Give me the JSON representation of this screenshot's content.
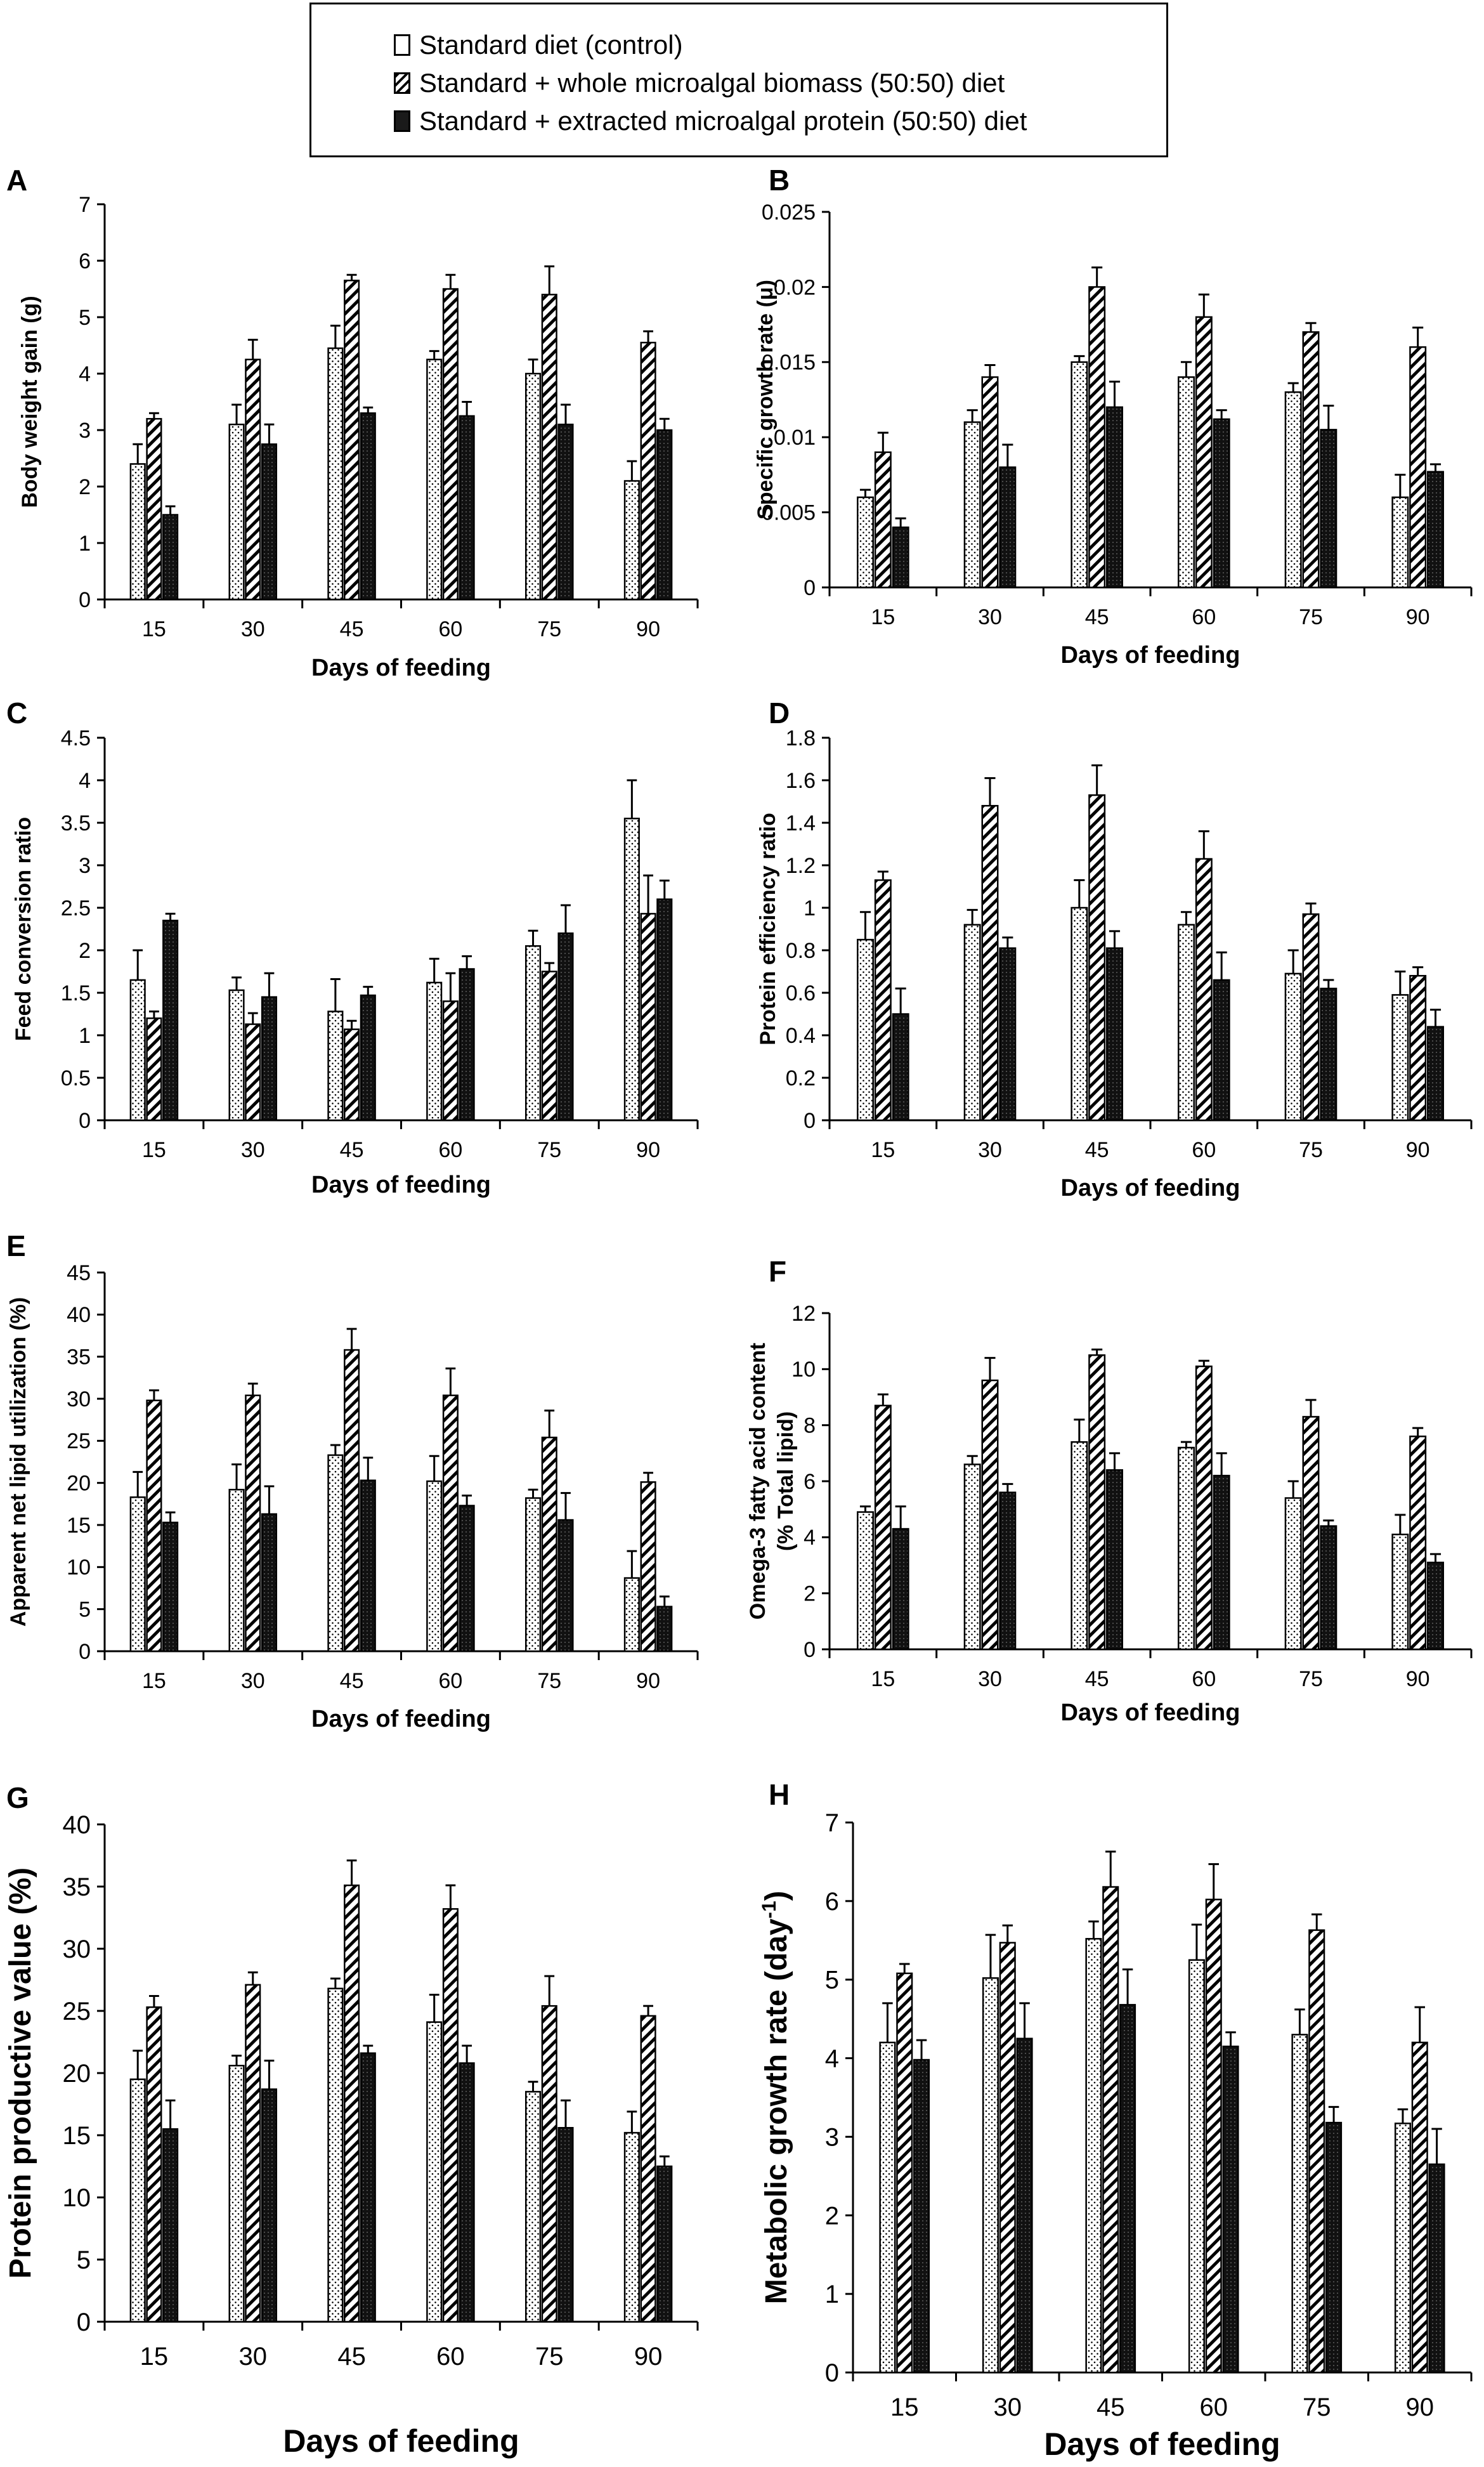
{
  "legend": {
    "items": [
      {
        "label": "Standard diet (control)",
        "pattern": "dots"
      },
      {
        "label": "Standard + whole microalgal biomass (50:50) diet",
        "pattern": "hatch"
      },
      {
        "label": "Standard + extracted microalgal protein (50:50) diet",
        "pattern": "dark"
      }
    ]
  },
  "colors": {
    "axis": "#000000",
    "bar_fill": "#ffffff",
    "dark_fill": "#1a1a1a"
  },
  "chart_data": [
    {
      "panel": "A",
      "type": "bar",
      "xlabel": "Days of feeding",
      "ylabel": "Body weight gain (g)",
      "ylim": [
        0,
        7
      ],
      "yticks": [
        "0",
        "1",
        "2",
        "3",
        "4",
        "5",
        "6",
        "7"
      ],
      "categories": [
        "15",
        "30",
        "45",
        "60",
        "75",
        "90"
      ],
      "series": [
        {
          "name": "Standard diet (control)",
          "values": [
            2.4,
            3.1,
            4.45,
            4.25,
            4.0,
            2.1
          ],
          "errors": [
            0.35,
            0.35,
            0.4,
            0.15,
            0.25,
            0.35
          ]
        },
        {
          "name": "Standard + whole microalgal biomass (50:50) diet",
          "values": [
            3.2,
            4.25,
            5.65,
            5.5,
            5.4,
            4.55
          ],
          "errors": [
            0.1,
            0.35,
            0.1,
            0.25,
            0.5,
            0.2
          ]
        },
        {
          "name": "Standard + extracted microalgal protein (50:50) diet",
          "values": [
            1.5,
            2.75,
            3.3,
            3.25,
            3.1,
            3.0
          ],
          "errors": [
            0.15,
            0.35,
            0.1,
            0.25,
            0.35,
            0.2
          ]
        }
      ]
    },
    {
      "panel": "B",
      "type": "bar",
      "xlabel": "Days of feeding",
      "ylabel": "Specific growth rate (μ)",
      "ylim": [
        0,
        0.025
      ],
      "yticks": [
        "0",
        "0.005",
        "0.01",
        "0.015",
        "0.02",
        "0.025"
      ],
      "categories": [
        "15",
        "30",
        "45",
        "60",
        "75",
        "90"
      ],
      "series": [
        {
          "name": "Standard diet (control)",
          "values": [
            0.006,
            0.011,
            0.015,
            0.014,
            0.013,
            0.006
          ],
          "errors": [
            0.0005,
            0.0008,
            0.0004,
            0.001,
            0.0006,
            0.0015
          ]
        },
        {
          "name": "Standard + whole microalgal biomass (50:50) diet",
          "values": [
            0.009,
            0.014,
            0.02,
            0.018,
            0.017,
            0.016
          ],
          "errors": [
            0.0013,
            0.0008,
            0.0013,
            0.0015,
            0.0006,
            0.0013
          ]
        },
        {
          "name": "Standard + extracted microalgal protein (50:50) diet",
          "values": [
            0.004,
            0.008,
            0.012,
            0.0112,
            0.0105,
            0.0077
          ],
          "errors": [
            0.0006,
            0.0015,
            0.0017,
            0.0006,
            0.0016,
            0.0005
          ]
        }
      ]
    },
    {
      "panel": "C",
      "type": "bar",
      "xlabel": "Days of feeding",
      "ylabel": "Feed conversion ratio",
      "ylim": [
        0,
        4.5
      ],
      "yticks": [
        "0",
        "0.5",
        "1",
        "1.5",
        "2",
        "2.5",
        "3",
        "3.5",
        "4",
        "4.5"
      ],
      "categories": [
        "15",
        "30",
        "45",
        "60",
        "75",
        "90"
      ],
      "series": [
        {
          "name": "Standard diet (control)",
          "values": [
            1.65,
            1.53,
            1.28,
            1.62,
            2.05,
            3.55
          ],
          "errors": [
            0.35,
            0.15,
            0.38,
            0.28,
            0.18,
            0.45
          ]
        },
        {
          "name": "Standard + whole microalgal biomass (50:50) diet",
          "values": [
            1.2,
            1.13,
            1.07,
            1.4,
            1.75,
            2.43
          ],
          "errors": [
            0.08,
            0.13,
            0.1,
            0.33,
            0.1,
            0.45
          ]
        },
        {
          "name": "Standard + extracted microalgal protein (50:50) diet",
          "values": [
            2.35,
            1.45,
            1.47,
            1.78,
            2.2,
            2.6
          ],
          "errors": [
            0.08,
            0.28,
            0.1,
            0.15,
            0.33,
            0.22
          ]
        }
      ]
    },
    {
      "panel": "D",
      "type": "bar",
      "xlabel": "Days of feeding",
      "ylabel": "Protein efficiency ratio",
      "ylim": [
        0,
        1.8
      ],
      "yticks": [
        "0",
        "0.2",
        "0.4",
        "0.6",
        "0.8",
        "1",
        "1.2",
        "1.4",
        "1.6",
        "1.8"
      ],
      "categories": [
        "15",
        "30",
        "45",
        "60",
        "75",
        "90"
      ],
      "series": [
        {
          "name": "Standard diet (control)",
          "values": [
            0.85,
            0.92,
            1.0,
            0.92,
            0.69,
            0.59
          ],
          "errors": [
            0.13,
            0.07,
            0.13,
            0.06,
            0.11,
            0.11
          ]
        },
        {
          "name": "Standard + whole microalgal biomass (50:50) diet",
          "values": [
            1.13,
            1.48,
            1.53,
            1.23,
            0.97,
            0.68
          ],
          "errors": [
            0.04,
            0.13,
            0.14,
            0.13,
            0.05,
            0.04
          ]
        },
        {
          "name": "Standard + extracted microalgal protein (50:50) diet",
          "values": [
            0.5,
            0.81,
            0.81,
            0.66,
            0.62,
            0.44
          ],
          "errors": [
            0.12,
            0.05,
            0.08,
            0.13,
            0.04,
            0.08
          ]
        }
      ]
    },
    {
      "panel": "E",
      "type": "bar",
      "xlabel": "Days of feeding",
      "ylabel": "Apparent net lipid utilization (%)",
      "ylim": [
        0,
        45
      ],
      "yticks": [
        "0",
        "5",
        "10",
        "15",
        "20",
        "25",
        "30",
        "35",
        "40",
        "45"
      ],
      "categories": [
        "15",
        "30",
        "45",
        "60",
        "75",
        "90"
      ],
      "series": [
        {
          "name": "Standard diet (control)",
          "values": [
            18.3,
            19.2,
            23.3,
            20.2,
            18.2,
            8.7
          ],
          "errors": [
            3.0,
            3.0,
            1.2,
            3.0,
            1.0,
            3.2
          ]
        },
        {
          "name": "Standard + whole microalgal biomass (50:50) diet",
          "values": [
            29.8,
            30.4,
            35.8,
            30.4,
            25.4,
            20.1
          ],
          "errors": [
            1.2,
            1.4,
            2.5,
            3.2,
            3.2,
            1.1
          ]
        },
        {
          "name": "Standard + extracted microalgal protein (50:50) diet",
          "values": [
            15.3,
            16.3,
            20.3,
            17.3,
            15.6,
            5.3
          ],
          "errors": [
            1.2,
            3.3,
            2.7,
            1.2,
            3.2,
            1.2
          ]
        }
      ]
    },
    {
      "panel": "F",
      "type": "bar",
      "xlabel": "Days of feeding",
      "ylabel": "Omega-3 fatty acid content (% Total lipid)",
      "ylim": [
        0,
        12
      ],
      "yticks": [
        "0",
        "2",
        "4",
        "6",
        "8",
        "10",
        "12"
      ],
      "categories": [
        "15",
        "30",
        "45",
        "60",
        "75",
        "90"
      ],
      "series": [
        {
          "name": "Standard diet (control)",
          "values": [
            4.9,
            6.6,
            7.4,
            7.2,
            5.4,
            4.1
          ],
          "errors": [
            0.2,
            0.3,
            0.8,
            0.2,
            0.6,
            0.7
          ]
        },
        {
          "name": "Standard + whole microalgal biomass (50:50) diet",
          "values": [
            8.7,
            9.6,
            10.5,
            10.1,
            8.3,
            7.6
          ],
          "errors": [
            0.4,
            0.8,
            0.2,
            0.2,
            0.6,
            0.3
          ]
        },
        {
          "name": "Standard + extracted microalgal protein (50:50) diet",
          "values": [
            4.3,
            5.6,
            6.4,
            6.2,
            4.4,
            3.1
          ],
          "errors": [
            0.8,
            0.3,
            0.6,
            0.8,
            0.2,
            0.3
          ]
        }
      ]
    },
    {
      "panel": "G",
      "type": "bar",
      "xlabel": "Days of feeding",
      "ylabel": "Protein productive value (%)",
      "ylim": [
        0,
        40
      ],
      "yticks": [
        "0",
        "5",
        "10",
        "15",
        "20",
        "25",
        "30",
        "35",
        "40"
      ],
      "categories": [
        "15",
        "30",
        "45",
        "60",
        "75",
        "90"
      ],
      "series": [
        {
          "name": "Standard diet (control)",
          "values": [
            19.5,
            20.6,
            26.8,
            24.1,
            18.5,
            15.2
          ],
          "errors": [
            2.3,
            0.8,
            0.8,
            2.2,
            0.8,
            1.7
          ]
        },
        {
          "name": "Standard + whole microalgal biomass (50:50) diet",
          "values": [
            25.3,
            27.1,
            35.1,
            33.2,
            25.4,
            24.6
          ],
          "errors": [
            0.9,
            1.0,
            2.0,
            1.9,
            2.4,
            0.8
          ]
        },
        {
          "name": "Standard + extracted microalgal protein (50:50) diet",
          "values": [
            15.5,
            18.7,
            21.6,
            20.8,
            15.6,
            12.5
          ],
          "errors": [
            2.3,
            2.3,
            0.6,
            1.4,
            2.2,
            0.8
          ]
        }
      ]
    },
    {
      "panel": "H",
      "type": "bar",
      "xlabel": "Days of feeding",
      "ylabel": "Metabolic growth rate (day-1)",
      "ylim": [
        0,
        7
      ],
      "yticks": [
        "0",
        "1",
        "2",
        "3",
        "4",
        "5",
        "6",
        "7"
      ],
      "categories": [
        "15",
        "30",
        "45",
        "60",
        "75",
        "90"
      ],
      "series": [
        {
          "name": "Standard diet (control)",
          "values": [
            4.2,
            5.02,
            5.52,
            5.25,
            4.3,
            3.17
          ],
          "errors": [
            0.5,
            0.55,
            0.22,
            0.45,
            0.32,
            0.18
          ]
        },
        {
          "name": "Standard + whole microalgal biomass (50:50) diet",
          "values": [
            5.08,
            5.47,
            6.18,
            6.02,
            5.63,
            4.2
          ],
          "errors": [
            0.12,
            0.22,
            0.45,
            0.45,
            0.2,
            0.45
          ]
        },
        {
          "name": "Standard + extracted microalgal protein (50:50) diet",
          "values": [
            3.98,
            4.25,
            4.68,
            4.15,
            3.18,
            2.65
          ],
          "errors": [
            0.25,
            0.45,
            0.45,
            0.18,
            0.2,
            0.45
          ]
        }
      ]
    }
  ]
}
